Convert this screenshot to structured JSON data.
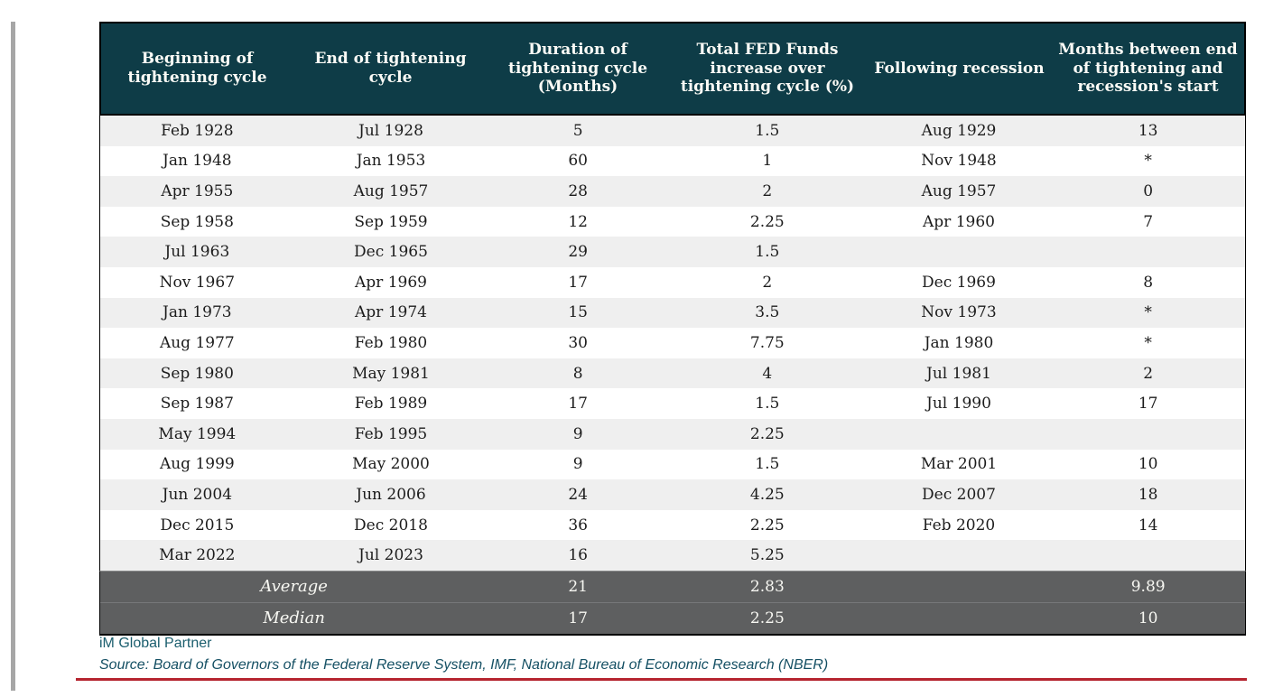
{
  "table": {
    "columns": [
      "Beginning of tightening cycle",
      "End of tightening cycle",
      "Duration of tightening cycle (Months)",
      "Total FED Funds increase over tightening cycle (%)",
      "Following recession",
      "Months between end of tightening and recession's start"
    ],
    "rows": [
      [
        "Feb 1928",
        "Jul 1928",
        "5",
        "1.5",
        "Aug 1929",
        "13"
      ],
      [
        "Jan 1948",
        "Jan 1953",
        "60",
        "1",
        "Nov 1948",
        "*"
      ],
      [
        "Apr 1955",
        "Aug 1957",
        "28",
        "2",
        "Aug 1957",
        "0"
      ],
      [
        "Sep 1958",
        "Sep 1959",
        "12",
        "2.25",
        "Apr 1960",
        "7"
      ],
      [
        "Jul 1963",
        "Dec 1965",
        "29",
        "1.5",
        "",
        ""
      ],
      [
        "Nov 1967",
        "Apr 1969",
        "17",
        "2",
        "Dec 1969",
        "8"
      ],
      [
        "Jan 1973",
        "Apr 1974",
        "15",
        "3.5",
        "Nov 1973",
        "*"
      ],
      [
        "Aug 1977",
        "Feb 1980",
        "30",
        "7.75",
        "Jan 1980",
        "*"
      ],
      [
        "Sep 1980",
        "May 1981",
        "8",
        "4",
        "Jul 1981",
        "2"
      ],
      [
        "Sep 1987",
        "Feb 1989",
        "17",
        "1.5",
        "Jul 1990",
        "17"
      ],
      [
        "May 1994",
        "Feb 1995",
        "9",
        "2.25",
        "",
        ""
      ],
      [
        "Aug 1999",
        "May 2000",
        "9",
        "1.5",
        "Mar 2001",
        "10"
      ],
      [
        "Jun 2004",
        "Jun 2006",
        "24",
        "4.25",
        "Dec 2007",
        "18"
      ],
      [
        "Dec 2015",
        "Dec 2018",
        "36",
        "2.25",
        "Feb 2020",
        "14"
      ],
      [
        "Mar 2022",
        "Jul 2023",
        "16",
        "5.25",
        "",
        ""
      ]
    ],
    "summary": [
      {
        "label": "Average",
        "duration": "21",
        "increase": "2.83",
        "months": "9.89"
      },
      {
        "label": "Median",
        "duration": "17",
        "increase": "2.25",
        "months": "10"
      }
    ]
  },
  "footer": {
    "brand": "iM Global Partner",
    "source": "Source: Board of Governors of the Federal Reserve System, IMF,  National Bureau of Economic Research (NBER)"
  },
  "colors": {
    "header_bg": "#0e3c47",
    "row_alt_bg": "#efefef",
    "summary_bg": "#5e5f60",
    "accent_red": "#b5242f",
    "brand_teal": "#1b5e6e",
    "source_teal": "#155064",
    "side_bar_gray": "#a6a6a6"
  }
}
